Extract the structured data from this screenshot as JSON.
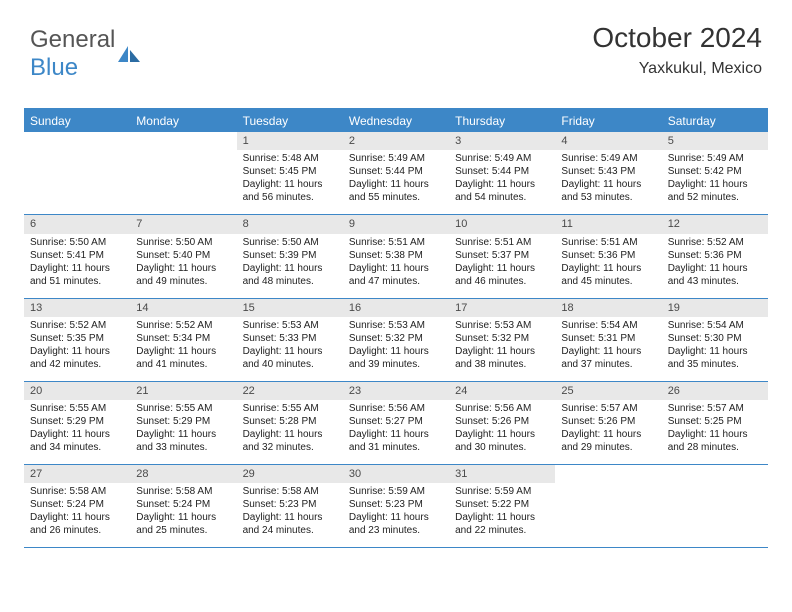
{
  "logo": {
    "word1": "General",
    "word2": "Blue"
  },
  "title": "October 2024",
  "location": "Yaxkukul, Mexico",
  "colors": {
    "accent": "#3d87c7",
    "daynum_bg": "#e8e8e8",
    "text": "#222222",
    "header_text": "#333333",
    "white": "#ffffff"
  },
  "daynames": [
    "Sunday",
    "Monday",
    "Tuesday",
    "Wednesday",
    "Thursday",
    "Friday",
    "Saturday"
  ],
  "days": [
    {
      "n": 1,
      "sr": "5:48 AM",
      "ss": "5:45 PM",
      "dl": "11 hours and 56 minutes."
    },
    {
      "n": 2,
      "sr": "5:49 AM",
      "ss": "5:44 PM",
      "dl": "11 hours and 55 minutes."
    },
    {
      "n": 3,
      "sr": "5:49 AM",
      "ss": "5:44 PM",
      "dl": "11 hours and 54 minutes."
    },
    {
      "n": 4,
      "sr": "5:49 AM",
      "ss": "5:43 PM",
      "dl": "11 hours and 53 minutes."
    },
    {
      "n": 5,
      "sr": "5:49 AM",
      "ss": "5:42 PM",
      "dl": "11 hours and 52 minutes."
    },
    {
      "n": 6,
      "sr": "5:50 AM",
      "ss": "5:41 PM",
      "dl": "11 hours and 51 minutes."
    },
    {
      "n": 7,
      "sr": "5:50 AM",
      "ss": "5:40 PM",
      "dl": "11 hours and 49 minutes."
    },
    {
      "n": 8,
      "sr": "5:50 AM",
      "ss": "5:39 PM",
      "dl": "11 hours and 48 minutes."
    },
    {
      "n": 9,
      "sr": "5:51 AM",
      "ss": "5:38 PM",
      "dl": "11 hours and 47 minutes."
    },
    {
      "n": 10,
      "sr": "5:51 AM",
      "ss": "5:37 PM",
      "dl": "11 hours and 46 minutes."
    },
    {
      "n": 11,
      "sr": "5:51 AM",
      "ss": "5:36 PM",
      "dl": "11 hours and 45 minutes."
    },
    {
      "n": 12,
      "sr": "5:52 AM",
      "ss": "5:36 PM",
      "dl": "11 hours and 43 minutes."
    },
    {
      "n": 13,
      "sr": "5:52 AM",
      "ss": "5:35 PM",
      "dl": "11 hours and 42 minutes."
    },
    {
      "n": 14,
      "sr": "5:52 AM",
      "ss": "5:34 PM",
      "dl": "11 hours and 41 minutes."
    },
    {
      "n": 15,
      "sr": "5:53 AM",
      "ss": "5:33 PM",
      "dl": "11 hours and 40 minutes."
    },
    {
      "n": 16,
      "sr": "5:53 AM",
      "ss": "5:32 PM",
      "dl": "11 hours and 39 minutes."
    },
    {
      "n": 17,
      "sr": "5:53 AM",
      "ss": "5:32 PM",
      "dl": "11 hours and 38 minutes."
    },
    {
      "n": 18,
      "sr": "5:54 AM",
      "ss": "5:31 PM",
      "dl": "11 hours and 37 minutes."
    },
    {
      "n": 19,
      "sr": "5:54 AM",
      "ss": "5:30 PM",
      "dl": "11 hours and 35 minutes."
    },
    {
      "n": 20,
      "sr": "5:55 AM",
      "ss": "5:29 PM",
      "dl": "11 hours and 34 minutes."
    },
    {
      "n": 21,
      "sr": "5:55 AM",
      "ss": "5:29 PM",
      "dl": "11 hours and 33 minutes."
    },
    {
      "n": 22,
      "sr": "5:55 AM",
      "ss": "5:28 PM",
      "dl": "11 hours and 32 minutes."
    },
    {
      "n": 23,
      "sr": "5:56 AM",
      "ss": "5:27 PM",
      "dl": "11 hours and 31 minutes."
    },
    {
      "n": 24,
      "sr": "5:56 AM",
      "ss": "5:26 PM",
      "dl": "11 hours and 30 minutes."
    },
    {
      "n": 25,
      "sr": "5:57 AM",
      "ss": "5:26 PM",
      "dl": "11 hours and 29 minutes."
    },
    {
      "n": 26,
      "sr": "5:57 AM",
      "ss": "5:25 PM",
      "dl": "11 hours and 28 minutes."
    },
    {
      "n": 27,
      "sr": "5:58 AM",
      "ss": "5:24 PM",
      "dl": "11 hours and 26 minutes."
    },
    {
      "n": 28,
      "sr": "5:58 AM",
      "ss": "5:24 PM",
      "dl": "11 hours and 25 minutes."
    },
    {
      "n": 29,
      "sr": "5:58 AM",
      "ss": "5:23 PM",
      "dl": "11 hours and 24 minutes."
    },
    {
      "n": 30,
      "sr": "5:59 AM",
      "ss": "5:23 PM",
      "dl": "11 hours and 23 minutes."
    },
    {
      "n": 31,
      "sr": "5:59 AM",
      "ss": "5:22 PM",
      "dl": "11 hours and 22 minutes."
    }
  ],
  "first_weekday": 2,
  "labels": {
    "sunrise": "Sunrise:",
    "sunset": "Sunset:",
    "daylight": "Daylight:"
  }
}
